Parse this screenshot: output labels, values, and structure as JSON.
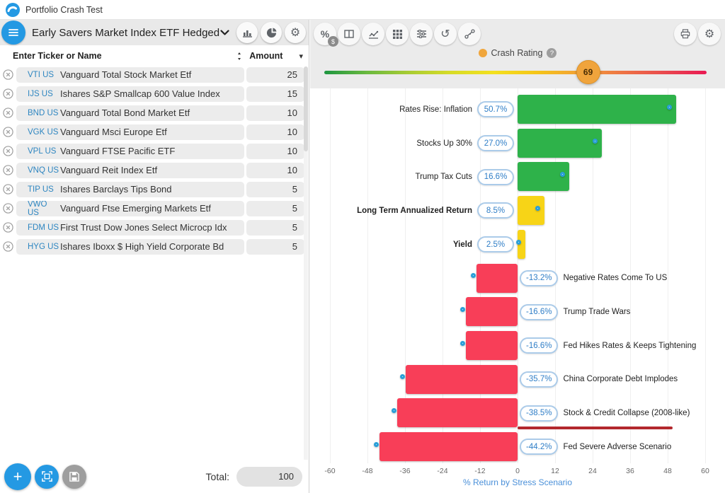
{
  "app": {
    "title": "Portfolio Crash Test"
  },
  "icons": {
    "percent": "%",
    "dollar_badge": "$",
    "gear": "⚙",
    "history": "↺",
    "plus": "+",
    "question": "?",
    "caret_down": "▾"
  },
  "left_panel": {
    "portfolio_name": "Early Savers Market Index ETF Hedged",
    "header_buttons": [
      "bar-chart",
      "pie-chart",
      "settings"
    ],
    "search_placeholder": "Enter Ticker or Name",
    "amount_header": "Amount",
    "holdings": [
      {
        "ticker": "VTI US",
        "name": "Vanguard Total Stock Market Etf",
        "amount": "25"
      },
      {
        "ticker": "IJS US",
        "name": "Ishares S&P Smallcap 600 Value Index",
        "amount": "15"
      },
      {
        "ticker": "BND US",
        "name": "Vanguard Total Bond Market Etf",
        "amount": "10"
      },
      {
        "ticker": "VGK US",
        "name": "Vanguard Msci Europe Etf",
        "amount": "10"
      },
      {
        "ticker": "VPL US",
        "name": "Vanguard FTSE Pacific ETF",
        "amount": "10"
      },
      {
        "ticker": "VNQ US",
        "name": "Vanguard Reit Index Etf",
        "amount": "10"
      },
      {
        "ticker": "TIP US",
        "name": "Ishares Barclays Tips Bond",
        "amount": "5"
      },
      {
        "ticker": "VWO US",
        "name": "Vanguard Ftse Emerging Markets Etf",
        "amount": "5"
      },
      {
        "ticker": "FDM US",
        "name": "First Trust Dow Jones Select Microcp Idx",
        "amount": "5"
      },
      {
        "ticker": "HYG US",
        "name": "Ishares Iboxx $ High Yield Corporate Bd",
        "amount": "5"
      }
    ],
    "total_label": "Total:",
    "total_value": "100",
    "footer_buttons": [
      "add-holding",
      "scan-portfolio",
      "save-portfolio"
    ]
  },
  "right_panel": {
    "toolbar_left_icons": [
      "percent-dollar-toggle",
      "columns-layout",
      "line-chart",
      "grid",
      "filter-sliders",
      "history",
      "flows"
    ],
    "toolbar_right_icons": [
      "print",
      "settings"
    ],
    "crash_rating": {
      "label": "Crash Rating",
      "value": 69,
      "min": 0,
      "max": 100
    }
  },
  "chart_data": {
    "type": "bar",
    "orientation": "horizontal",
    "xlabel": "% Return by Stress Scenario",
    "xlim": [
      -60,
      60
    ],
    "xticks": [
      -60,
      -48,
      -36,
      -24,
      -12,
      0,
      12,
      24,
      36,
      48,
      60
    ],
    "grid": true,
    "palette": {
      "green": "#2eb24a",
      "yellow": "#f7d417",
      "red": "#f83e58",
      "underline": "#b3282d"
    },
    "scenarios": [
      {
        "label": "Rates Rise: Inflation",
        "value": 50.7,
        "display": "50.7%",
        "color": "green"
      },
      {
        "label": "Stocks Up 30%",
        "value": 27.0,
        "display": "27.0%",
        "color": "green"
      },
      {
        "label": "Trump Tax Cuts",
        "value": 16.6,
        "display": "16.6%",
        "color": "green"
      },
      {
        "label": "Long Term Annualized Return",
        "value": 8.5,
        "display": "8.5%",
        "color": "yellow",
        "bold": true
      },
      {
        "label": "Yield",
        "value": 2.5,
        "display": "2.5%",
        "color": "yellow",
        "bold": true
      },
      {
        "label": "Negative Rates Come To US",
        "value": -13.2,
        "display": "-13.2%",
        "color": "red"
      },
      {
        "label": "Trump Trade Wars",
        "value": -16.6,
        "display": "-16.6%",
        "color": "red"
      },
      {
        "label": "Fed Hikes Rates & Keeps Tightening",
        "value": -16.6,
        "display": "-16.6%",
        "color": "red"
      },
      {
        "label": "China Corporate Debt Implodes",
        "value": -35.7,
        "display": "-35.7%",
        "color": "red"
      },
      {
        "label": "Stock & Credit Collapse (2008-like)",
        "value": -38.5,
        "display": "-38.5%",
        "color": "red",
        "underline": true
      },
      {
        "label": "Fed Severe Adverse Scenario",
        "value": -44.2,
        "display": "-44.2%",
        "color": "red"
      }
    ]
  }
}
